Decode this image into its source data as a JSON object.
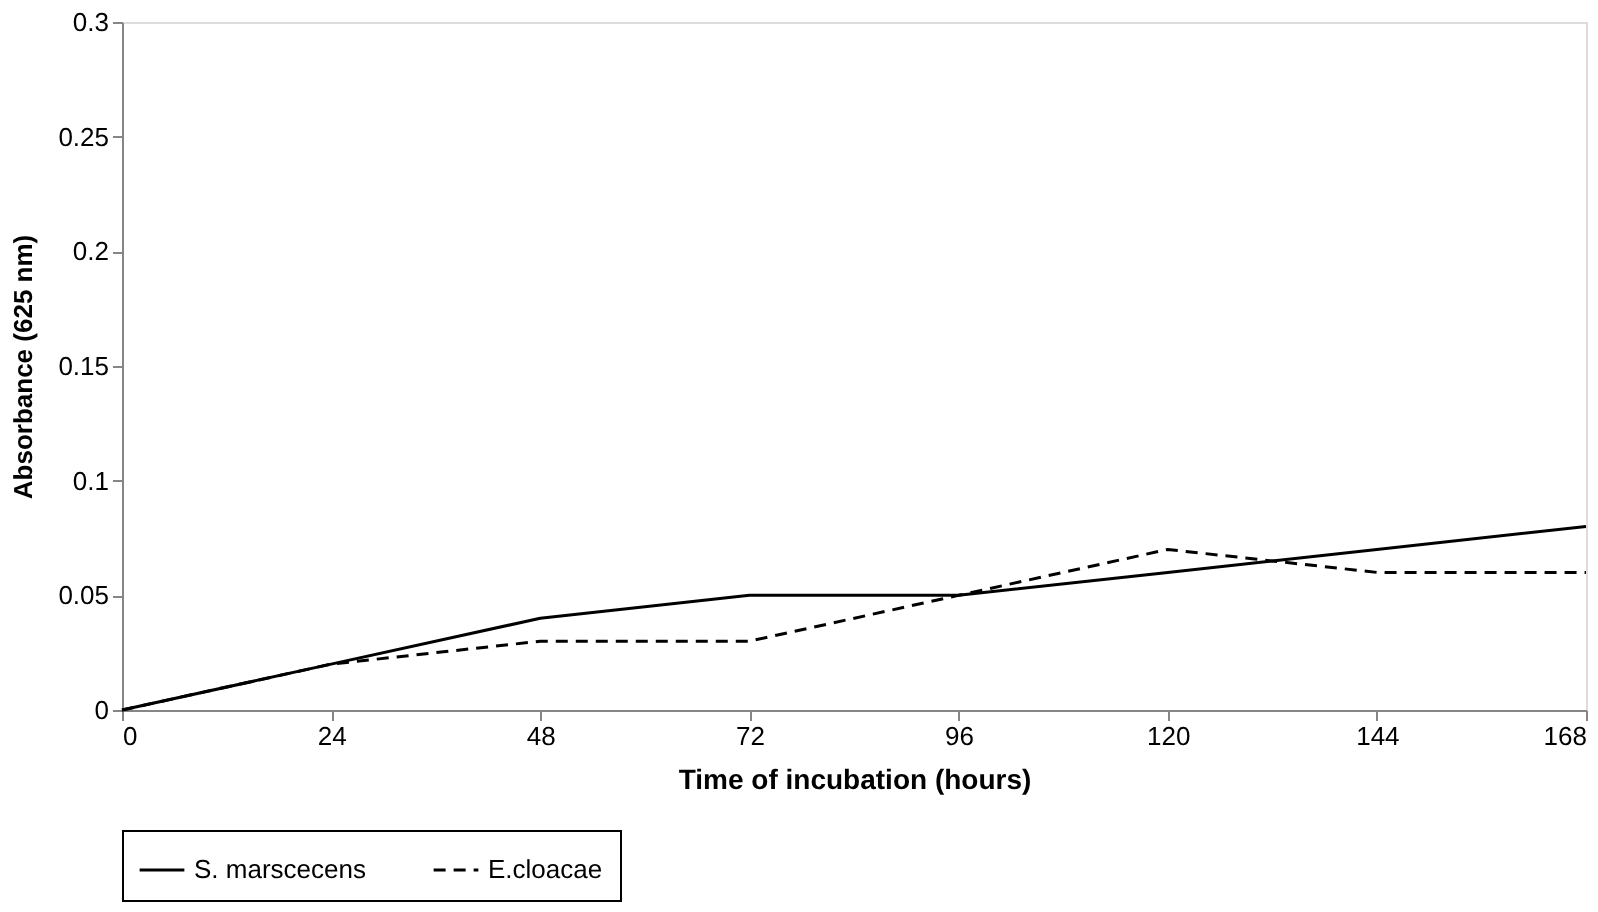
{
  "chart_data": {
    "type": "line",
    "xlabel": "Time of incubation  (hours)",
    "ylabel": "Absorbance (625 nm)",
    "x": [
      0,
      24,
      48,
      72,
      96,
      120,
      144,
      168
    ],
    "xlim": [
      0,
      168
    ],
    "xticks": [
      0,
      24,
      48,
      72,
      96,
      120,
      144,
      168
    ],
    "ylim": [
      0,
      0.3
    ],
    "yticks": [
      0,
      0.05,
      0.1,
      0.15,
      0.2,
      0.25,
      0.3
    ],
    "grid": false,
    "legend": "bottom",
    "series": [
      {
        "name": "S. marscecens",
        "color": "#000000",
        "line_style": "solid",
        "values": [
          0,
          0.02,
          0.04,
          0.05,
          0.05,
          0.06,
          0.07,
          0.08
        ]
      },
      {
        "name": "E.cloacae",
        "color": "#000000",
        "line_style": "dashed",
        "values": [
          0,
          0.02,
          0.03,
          0.03,
          0.05,
          0.07,
          0.06,
          0.06
        ]
      }
    ]
  }
}
